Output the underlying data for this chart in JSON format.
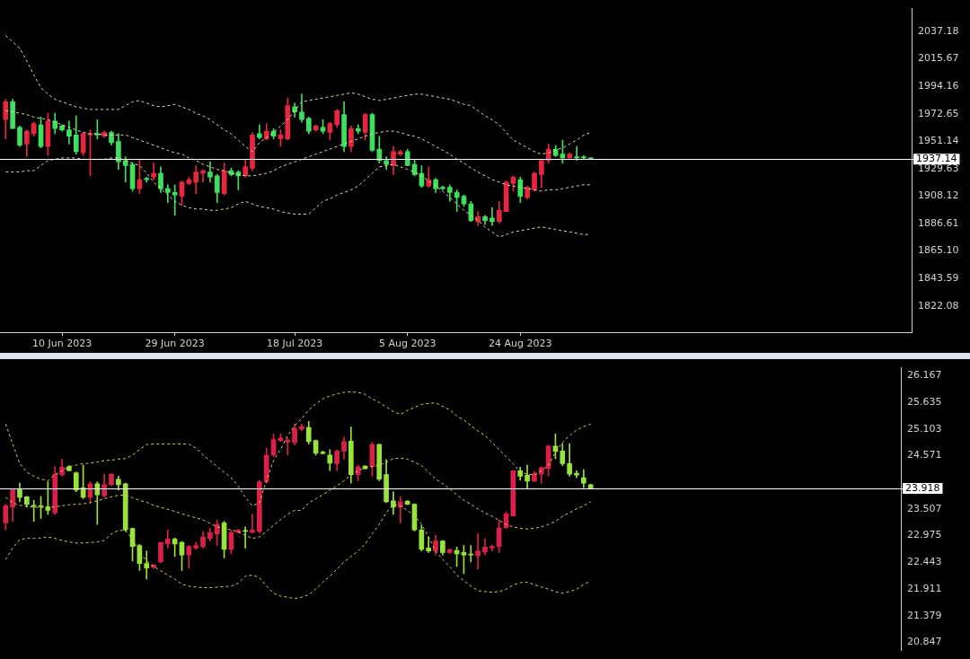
{
  "chart_data": [
    {
      "type": "candlestick",
      "categories": [
        null,
        null,
        null,
        null,
        null,
        null,
        null,
        null,
        "10 Jun 2023",
        null,
        null,
        null,
        null,
        null,
        null,
        null,
        null,
        null,
        null,
        null,
        null,
        null,
        null,
        null,
        "29 Jun 2023",
        null,
        null,
        null,
        null,
        null,
        null,
        null,
        null,
        null,
        null,
        null,
        null,
        null,
        null,
        null,
        null,
        "18 Jul 2023",
        null,
        null,
        null,
        null,
        null,
        null,
        null,
        null,
        null,
        null,
        null,
        null,
        null,
        null,
        null,
        "5 Aug 2023",
        null,
        null,
        null,
        null,
        null,
        null,
        null,
        null,
        null,
        null,
        null,
        null,
        null,
        null,
        null,
        "24 Aug 2023",
        null,
        null,
        null,
        null,
        null,
        null,
        null,
        null,
        null,
        null
      ],
      "ohlc": [
        [
          1968,
          1984,
          1953,
          1982
        ],
        [
          1982,
          1984,
          1961,
          1961
        ],
        [
          1962,
          1963,
          1947,
          1948
        ],
        [
          1949,
          1960,
          1939,
          1959
        ],
        [
          1957,
          1966,
          1955,
          1965
        ],
        [
          1964,
          1970,
          1946,
          1947
        ],
        [
          1947,
          1973,
          1940,
          1967
        ],
        [
          1967,
          1973,
          1957,
          1961
        ],
        [
          1963,
          1964,
          1959,
          1960
        ],
        [
          1960,
          1967,
          1949,
          1955
        ],
        [
          1956,
          1971,
          1941,
          1943
        ],
        [
          1942,
          1958,
          1940,
          1957
        ],
        [
          1956,
          1960,
          1924,
          1957
        ],
        [
          1957,
          1968,
          1953,
          1956
        ],
        [
          1955,
          1959,
          1954,
          1958
        ],
        [
          1958,
          1959,
          1948,
          1950
        ],
        [
          1951,
          1957,
          1929,
          1935
        ],
        [
          1936,
          1939,
          1919,
          1932
        ],
        [
          1933,
          1934,
          1912,
          1914
        ],
        [
          1914,
          1937,
          1910,
          1921
        ],
        [
          1922,
          1923,
          1919,
          1921
        ],
        [
          1923,
          1934,
          1921,
          1926
        ],
        [
          1926,
          1931,
          1911,
          1914
        ],
        [
          1914,
          1917,
          1903,
          1911
        ],
        [
          1911,
          1917,
          1893,
          1909
        ],
        [
          1908,
          1920,
          1901,
          1919
        ],
        [
          1918,
          1923,
          1917,
          1921
        ],
        [
          1919,
          1932,
          1910,
          1927
        ],
        [
          1926,
          1929,
          1919,
          1928
        ],
        [
          1927,
          1935,
          1919,
          1923
        ],
        [
          1924,
          1925,
          1903,
          1911
        ],
        [
          1910,
          1934,
          1909,
          1928
        ],
        [
          1928,
          1930,
          1924,
          1925
        ],
        [
          1927,
          1928,
          1913,
          1924
        ],
        [
          1924,
          1937,
          1923,
          1931
        ],
        [
          1930,
          1958,
          1928,
          1956
        ],
        [
          1957,
          1964,
          1953,
          1954
        ],
        [
          1953,
          1965,
          1952,
          1959
        ],
        [
          1959,
          1961,
          1953,
          1955
        ],
        [
          1953,
          1960,
          1947,
          1956
        ],
        [
          1953,
          1985,
          1952,
          1979
        ],
        [
          1978,
          1981,
          1970,
          1974
        ],
        [
          1974,
          1988,
          1966,
          1968
        ],
        [
          1969,
          1970,
          1957,
          1959
        ],
        [
          1960,
          1964,
          1959,
          1963
        ],
        [
          1962,
          1968,
          1957,
          1959
        ],
        [
          1958,
          1966,
          1952,
          1965
        ],
        [
          1964,
          1976,
          1962,
          1975
        ],
        [
          1972,
          1982,
          1943,
          1947
        ],
        [
          1947,
          1963,
          1943,
          1961
        ],
        [
          1961,
          1964,
          1957,
          1959
        ],
        [
          1958,
          1973,
          1952,
          1972
        ],
        [
          1972,
          1973,
          1943,
          1944
        ],
        [
          1945,
          1955,
          1934,
          1936
        ],
        [
          1936,
          1939,
          1929,
          1933
        ],
        [
          1932,
          1947,
          1925,
          1943
        ],
        [
          1941,
          1944,
          1940,
          1943
        ],
        [
          1943,
          1945,
          1932,
          1932
        ],
        [
          1933,
          1937,
          1924,
          1925
        ],
        [
          1926,
          1932,
          1915,
          1916
        ],
        [
          1916,
          1931,
          1915,
          1921
        ],
        [
          1921,
          1922,
          1911,
          1914
        ],
        [
          1915,
          1916,
          1913,
          1914
        ],
        [
          1915,
          1917,
          1904,
          1911
        ],
        [
          1911,
          1913,
          1896,
          1907
        ],
        [
          1908,
          1909,
          1900,
          1902
        ],
        [
          1902,
          1904,
          1888,
          1889
        ],
        [
          1888,
          1896,
          1885,
          1892
        ],
        [
          1892,
          1893,
          1886,
          1889
        ],
        [
          1891,
          1899,
          1885,
          1888
        ],
        [
          1888,
          1904,
          1887,
          1897
        ],
        [
          1896,
          1920,
          1896,
          1919
        ],
        [
          1918,
          1924,
          1912,
          1923
        ],
        [
          1921,
          1923,
          1903,
          1908
        ],
        [
          1907,
          1916,
          1906,
          1915
        ],
        [
          1913,
          1927,
          1912,
          1926
        ],
        [
          1925,
          1937,
          1915,
          1936
        ],
        [
          1936,
          1949,
          1934,
          1945
        ],
        [
          1945,
          1948,
          1939,
          1940
        ],
        [
          1941,
          1952,
          1934,
          1938
        ],
        [
          1938,
          1942,
          1937,
          1941
        ],
        [
          1939,
          1947,
          1936,
          1938
        ],
        [
          1939,
          1940,
          1937,
          1938
        ],
        [
          1938,
          1938,
          1937,
          1937
        ]
      ],
      "colors": [
        "#e8263f",
        "#3ee05c",
        "#3ee05c",
        "#e8263f",
        "#e8263f",
        "#3ee05c",
        "#e8263f",
        "#3ee05c",
        "#3ee05c",
        "#3ee05c",
        "#3ee05c",
        "#e8263f",
        "#e8263f",
        "#3ee05c",
        "#e8263f",
        "#3ee05c",
        "#3ee05c",
        "#3ee05c",
        "#3ee05c",
        "#e8263f",
        "#3ee05c",
        "#e8263f",
        "#3ee05c",
        "#3ee05c",
        "#3ee05c",
        "#e8263f",
        "#e8263f",
        "#e8263f",
        "#e8263f",
        "#3ee05c",
        "#3ee05c",
        "#e8263f",
        "#3ee05c",
        "#3ee05c",
        "#e8263f",
        "#e8263f",
        "#3ee05c",
        "#e8263f",
        "#3ee05c",
        "#e8263f",
        "#e8263f",
        "#3ee05c",
        "#3ee05c",
        "#3ee05c",
        "#e8263f",
        "#3ee05c",
        "#e8263f",
        "#e8263f",
        "#3ee05c",
        "#e8263f",
        "#3ee05c",
        "#e8263f",
        "#3ee05c",
        "#3ee05c",
        "#3ee05c",
        "#e8263f",
        "#e8263f",
        "#3ee05c",
        "#3ee05c",
        "#3ee05c",
        "#e8263f",
        "#3ee05c",
        "#3ee05c",
        "#3ee05c",
        "#3ee05c",
        "#3ee05c",
        "#3ee05c",
        "#e8263f",
        "#3ee05c",
        "#3ee05c",
        "#e8263f",
        "#e8263f",
        "#e8263f",
        "#3ee05c",
        "#e8263f",
        "#e8263f",
        "#e8263f",
        "#e8263f",
        "#3ee05c",
        "#3ee05c",
        "#e8263f",
        "#3ee05c",
        "#3ee05c",
        "#3ee05c"
      ],
      "series": [
        {
          "type": "line",
          "color": "#e0dca0",
          "line_style": "dashed",
          "values": [
            2034,
            2029,
            2024,
            2014,
            2003,
            1993,
            1988,
            1984,
            1982,
            1980,
            1978,
            1977,
            1976,
            1976,
            1976,
            1976,
            1976,
            1979,
            1982,
            1983,
            1981,
            1979,
            1978,
            1979,
            1980,
            1978,
            1976,
            1973,
            1971,
            1968,
            1964,
            1960,
            1957,
            1952,
            1947,
            1943,
            1950,
            1954,
            1958,
            1963,
            1968,
            1975,
            1982,
            1983,
            1984,
            1985,
            1986,
            1987,
            1988,
            1989,
            1988,
            1986,
            1984,
            1983,
            1984,
            1985,
            1986,
            1987,
            1988,
            1988,
            1987,
            1986,
            1985,
            1984,
            1982,
            1980,
            1979,
            1975,
            1971,
            1968,
            1964,
            1958,
            1952,
            1949,
            1946,
            1943,
            1941,
            1942,
            1944,
            1946,
            1949,
            1952,
            1956,
            1958
          ]
        },
        {
          "type": "line",
          "color": "#e0dca0",
          "line_style": "dashed",
          "values": [
            1975,
            1974,
            1973,
            1972,
            1970,
            1969,
            1968,
            1966,
            1964,
            1962,
            1960,
            1958,
            1957,
            1957,
            1956,
            1956,
            1956,
            1956,
            1954,
            1952,
            1950,
            1948,
            1946,
            1944,
            1942,
            1941,
            1938,
            1936,
            1933,
            1931,
            1929,
            1928,
            1926,
            1925,
            1924,
            1924,
            1925,
            1926,
            1928,
            1931,
            1933,
            1935,
            1937,
            1939,
            1941,
            1943,
            1945,
            1947,
            1949,
            1951,
            1953,
            1955,
            1957,
            1958,
            1959,
            1959,
            1958,
            1956,
            1955,
            1953,
            1950,
            1947,
            1944,
            1941,
            1937,
            1934,
            1930,
            1927,
            1924,
            1921,
            1919,
            1917,
            1916,
            1915,
            1914,
            1913,
            1912,
            1913,
            1913,
            1914,
            1915,
            1916,
            1917,
            1917
          ]
        },
        {
          "type": "line",
          "color": "#e0dca0",
          "line_style": "dashed",
          "values": [
            1927,
            1927,
            1927,
            1928,
            1928,
            1932,
            1936,
            1937,
            1938,
            1938,
            1938,
            1937,
            1937,
            1937,
            1937,
            1938,
            1938,
            1936,
            1934,
            1932,
            1926,
            1919,
            1914,
            1909,
            1904,
            1901,
            1899,
            1898,
            1898,
            1897,
            1897,
            1898,
            1899,
            1902,
            1904,
            1902,
            1900,
            1899,
            1898,
            1896,
            1895,
            1894,
            1894,
            1894,
            1899,
            1904,
            1906,
            1909,
            1911,
            1913,
            1916,
            1921,
            1926,
            1931,
            1932,
            1933,
            1931,
            1929,
            1927,
            1924,
            1920,
            1916,
            1912,
            1907,
            1902,
            1897,
            1893,
            1889,
            1884,
            1880,
            1876,
            1878,
            1880,
            1881,
            1882,
            1883,
            1884,
            1883,
            1882,
            1881,
            1880,
            1879,
            1878,
            1878
          ]
        }
      ],
      "ylim": [
        1801.5,
        2055.0
      ],
      "yticks": [
        1822.08,
        1843.59,
        {
          "value": 1865.1,
          "label": "1865.10"
        },
        1886.61,
        1908.12,
        1929.63,
        1951.14,
        1972.65,
        1994.16,
        2015.67,
        2037.18
      ],
      "ref_lines": [
        {
          "axis": "y",
          "value": 1937.14,
          "label": "1937.14",
          "color": "#ffffff"
        }
      ]
    },
    {
      "type": "candlestick",
      "categories": [
        null,
        null,
        null,
        null,
        null,
        null,
        null,
        null,
        null,
        null,
        null,
        null,
        null,
        null,
        null,
        null,
        null,
        null,
        null,
        null,
        null,
        null,
        null,
        null,
        null,
        null,
        null,
        null,
        null,
        null,
        null,
        null,
        null,
        null,
        null,
        null,
        null,
        null,
        null,
        null,
        null,
        null,
        null,
        null,
        null,
        null,
        null,
        null,
        null,
        null,
        null,
        null,
        null,
        null,
        null,
        null,
        null,
        null,
        null,
        null,
        null,
        null,
        null,
        null,
        null,
        null,
        null,
        null,
        null,
        null,
        null,
        null,
        null,
        null,
        null,
        null,
        null,
        null,
        null,
        null,
        null,
        null,
        null,
        null
      ],
      "tick_labels": "y",
      "ohlc": [
        [
          23.23,
          23.6,
          23.09,
          23.57
        ],
        [
          23.54,
          23.92,
          23.26,
          23.9
        ],
        [
          23.9,
          24.02,
          23.65,
          23.74
        ],
        [
          23.75,
          23.76,
          23.54,
          23.6
        ],
        [
          23.58,
          23.68,
          23.26,
          23.56
        ],
        [
          23.57,
          23.76,
          23.32,
          23.55
        ],
        [
          23.55,
          24.05,
          23.4,
          23.48
        ],
        [
          23.43,
          24.35,
          23.4,
          24.2
        ],
        [
          24.19,
          24.5,
          24.16,
          24.34
        ],
        [
          24.35,
          24.37,
          24.26,
          24.27
        ],
        [
          24.23,
          24.24,
          23.85,
          23.88
        ],
        [
          23.93,
          24.38,
          23.71,
          23.74
        ],
        [
          23.74,
          24.05,
          23.63,
          24.01
        ],
        [
          24.01,
          24.05,
          23.2,
          23.79
        ],
        [
          23.77,
          24.2,
          23.74,
          23.99
        ],
        [
          23.99,
          24.21,
          23.97,
          24.2
        ],
        [
          24.1,
          24.16,
          23.88,
          23.99
        ],
        [
          24.01,
          24.02,
          23.06,
          23.09
        ],
        [
          23.12,
          23.13,
          22.47,
          22.76
        ],
        [
          22.78,
          22.8,
          22.28,
          22.42
        ],
        [
          22.42,
          22.67,
          22.11,
          22.33
        ],
        [
          22.35,
          22.4,
          22.32,
          22.39
        ],
        [
          22.45,
          22.84,
          22.44,
          22.84
        ],
        [
          22.81,
          23.09,
          22.73,
          22.91
        ],
        [
          22.91,
          22.93,
          22.56,
          22.81
        ],
        [
          22.84,
          22.86,
          22.28,
          22.59
        ],
        [
          22.59,
          22.78,
          22.33,
          22.76
        ],
        [
          22.73,
          22.84,
          22.7,
          22.78
        ],
        [
          22.76,
          23.06,
          22.73,
          22.95
        ],
        [
          22.92,
          23.12,
          22.87,
          23.04
        ],
        [
          23.01,
          23.29,
          22.78,
          23.2
        ],
        [
          23.23,
          23.26,
          22.53,
          22.7
        ],
        [
          22.7,
          23.09,
          22.61,
          23.04
        ],
        [
          23.04,
          23.1,
          23.02,
          23.09
        ],
        [
          23.07,
          23.15,
          22.73,
          23.06
        ],
        [
          23.04,
          23.4,
          23.03,
          23.09
        ],
        [
          23.06,
          24.07,
          23.03,
          24.05
        ],
        [
          24.05,
          24.72,
          24.02,
          24.58
        ],
        [
          24.58,
          25.0,
          24.55,
          24.89
        ],
        [
          24.87,
          25.0,
          24.85,
          24.92
        ],
        [
          24.84,
          24.92,
          24.58,
          24.88
        ],
        [
          24.83,
          25.2,
          24.78,
          25.11
        ],
        [
          25.1,
          25.2,
          25.06,
          25.15
        ],
        [
          25.13,
          25.25,
          24.8,
          24.85
        ],
        [
          24.87,
          24.88,
          24.58,
          24.62
        ],
        [
          24.64,
          24.66,
          24.6,
          24.61
        ],
        [
          24.58,
          24.69,
          24.27,
          24.42
        ],
        [
          24.41,
          24.68,
          24.27,
          24.66
        ],
        [
          24.66,
          24.94,
          24.5,
          24.85
        ],
        [
          24.86,
          25.14,
          24.02,
          24.19
        ],
        [
          24.19,
          24.38,
          24.07,
          24.35
        ],
        [
          24.36,
          24.37,
          24.3,
          24.31
        ],
        [
          24.35,
          24.83,
          24.16,
          24.79
        ],
        [
          24.79,
          24.8,
          24.07,
          24.1
        ],
        [
          24.19,
          24.49,
          23.63,
          23.65
        ],
        [
          23.67,
          23.85,
          23.4,
          23.54
        ],
        [
          23.54,
          23.76,
          23.23,
          23.65
        ],
        [
          23.66,
          23.68,
          23.59,
          23.6
        ],
        [
          23.6,
          23.61,
          23.07,
          23.09
        ],
        [
          23.09,
          23.18,
          22.67,
          22.7
        ],
        [
          22.73,
          22.95,
          22.64,
          22.67
        ],
        [
          22.67,
          22.98,
          22.59,
          22.87
        ],
        [
          22.87,
          22.88,
          22.59,
          22.64
        ],
        [
          22.64,
          22.71,
          22.62,
          22.7
        ],
        [
          22.68,
          22.75,
          22.36,
          22.61
        ],
        [
          22.64,
          22.78,
          22.22,
          22.59
        ],
        [
          22.61,
          22.78,
          22.45,
          22.59
        ],
        [
          22.57,
          23.01,
          22.31,
          22.67
        ],
        [
          22.65,
          22.92,
          22.59,
          22.75
        ],
        [
          22.73,
          22.79,
          22.67,
          22.76
        ],
        [
          22.76,
          23.29,
          22.64,
          23.13
        ],
        [
          23.13,
          23.45,
          23.12,
          23.41
        ],
        [
          23.37,
          24.27,
          23.37,
          24.27
        ],
        [
          24.27,
          24.34,
          24.08,
          24.16
        ],
        [
          24.18,
          24.38,
          23.91,
          24.06
        ],
        [
          24.06,
          24.25,
          24.05,
          24.21
        ],
        [
          24.2,
          24.35,
          24.02,
          24.33
        ],
        [
          24.31,
          24.78,
          24.16,
          24.76
        ],
        [
          24.76,
          25.0,
          24.51,
          24.65
        ],
        [
          24.66,
          24.81,
          24.37,
          24.41
        ],
        [
          24.41,
          24.81,
          24.16,
          24.2
        ],
        [
          24.22,
          24.27,
          24.13,
          24.18
        ],
        [
          24.13,
          24.29,
          23.93,
          24.02
        ],
        [
          23.99,
          24.0,
          23.92,
          23.92
        ]
      ],
      "colors": [
        "#dc2048",
        "#dc2048",
        "#98e33a",
        "#98e33a",
        "#98e33a",
        "#98e33a",
        "#98e33a",
        "#dc2048",
        "#dc2048",
        "#98e33a",
        "#98e33a",
        "#98e33a",
        "#dc2048",
        "#98e33a",
        "#dc2048",
        "#dc2048",
        "#98e33a",
        "#98e33a",
        "#98e33a",
        "#98e33a",
        "#98e33a",
        "#dc2048",
        "#dc2048",
        "#dc2048",
        "#98e33a",
        "#98e33a",
        "#dc2048",
        "#dc2048",
        "#dc2048",
        "#dc2048",
        "#dc2048",
        "#98e33a",
        "#dc2048",
        "#dc2048",
        "#98e33a",
        "#dc2048",
        "#dc2048",
        "#dc2048",
        "#dc2048",
        "#dc2048",
        "#dc2048",
        "#dc2048",
        "#dc2048",
        "#98e33a",
        "#98e33a",
        "#98e33a",
        "#98e33a",
        "#dc2048",
        "#dc2048",
        "#98e33a",
        "#dc2048",
        "#98e33a",
        "#dc2048",
        "#98e33a",
        "#98e33a",
        "#98e33a",
        "#dc2048",
        "#98e33a",
        "#98e33a",
        "#98e33a",
        "#98e33a",
        "#dc2048",
        "#98e33a",
        "#dc2048",
        "#98e33a",
        "#98e33a",
        "#98e33a",
        "#dc2048",
        "#dc2048",
        "#dc2048",
        "#dc2048",
        "#dc2048",
        "#dc2048",
        "#98e33a",
        "#98e33a",
        "#dc2048",
        "#dc2048",
        "#dc2048",
        "#98e33a",
        "#98e33a",
        "#98e33a",
        "#98e33a",
        "#98e33a",
        "#98e33a"
      ],
      "series": [
        {
          "type": "line",
          "color": "#d8d050",
          "line_style": "dashed",
          "values": [
            25.2,
            24.8,
            24.41,
            24.24,
            24.16,
            24.1,
            24.07,
            24.19,
            24.27,
            24.35,
            24.38,
            24.41,
            24.42,
            24.44,
            24.47,
            24.48,
            24.5,
            24.51,
            24.58,
            24.69,
            24.79,
            24.8,
            24.8,
            24.8,
            24.8,
            24.8,
            24.8,
            24.72,
            24.58,
            24.47,
            24.35,
            24.24,
            24.13,
            23.96,
            23.74,
            23.57,
            23.63,
            24.07,
            24.47,
            24.69,
            24.97,
            25.17,
            25.31,
            25.48,
            25.6,
            25.7,
            25.76,
            25.8,
            25.83,
            25.84,
            25.83,
            25.79,
            25.7,
            25.63,
            25.54,
            25.45,
            25.39,
            25.47,
            25.53,
            25.59,
            25.61,
            25.62,
            25.55,
            25.48,
            25.36,
            25.28,
            25.17,
            25.06,
            24.97,
            24.83,
            24.69,
            24.55,
            24.41,
            24.24,
            24.2,
            24.19,
            24.27,
            24.38,
            24.64,
            24.83,
            24.97,
            25.08,
            25.15,
            25.2
          ]
        },
        {
          "type": "line",
          "color": "#d8d050",
          "line_style": "dashed",
          "values": [
            23.74,
            23.63,
            23.58,
            23.56,
            23.54,
            23.54,
            23.54,
            23.55,
            23.57,
            23.59,
            23.6,
            23.61,
            23.63,
            23.67,
            23.71,
            23.75,
            23.78,
            23.78,
            23.73,
            23.68,
            23.64,
            23.58,
            23.54,
            23.5,
            23.46,
            23.41,
            23.37,
            23.33,
            23.29,
            23.22,
            23.15,
            23.12,
            23.09,
            23.05,
            22.98,
            22.92,
            22.95,
            23.06,
            23.18,
            23.29,
            23.4,
            23.48,
            23.48,
            23.63,
            23.71,
            23.79,
            23.88,
            23.97,
            24.07,
            24.19,
            24.27,
            24.33,
            24.35,
            24.38,
            24.44,
            24.51,
            24.52,
            24.5,
            24.44,
            24.37,
            24.24,
            24.1,
            24.01,
            23.91,
            23.79,
            23.68,
            23.6,
            23.51,
            23.43,
            23.36,
            23.28,
            23.2,
            23.15,
            23.12,
            23.11,
            23.12,
            23.15,
            23.2,
            23.26,
            23.36,
            23.43,
            23.51,
            23.57,
            23.65
          ]
        },
        {
          "type": "line",
          "color": "#d8d050",
          "line_style": "dashed",
          "values": [
            22.5,
            22.73,
            22.9,
            22.92,
            22.92,
            22.93,
            22.95,
            22.92,
            22.88,
            22.85,
            22.83,
            22.83,
            22.84,
            22.85,
            22.88,
            23.01,
            23.08,
            23.08,
            22.9,
            22.64,
            22.47,
            22.36,
            22.28,
            22.19,
            22.11,
            22.01,
            21.97,
            21.95,
            21.94,
            21.94,
            21.95,
            21.96,
            21.97,
            22.03,
            22.17,
            22.19,
            22.14,
            21.97,
            21.83,
            21.77,
            21.75,
            21.72,
            21.75,
            21.8,
            21.91,
            22.05,
            22.17,
            22.31,
            22.45,
            22.56,
            22.67,
            22.81,
            23.01,
            23.2,
            23.43,
            23.6,
            23.57,
            23.48,
            23.37,
            23.2,
            22.95,
            22.67,
            22.5,
            22.36,
            22.19,
            22.08,
            21.97,
            21.88,
            21.86,
            21.85,
            21.86,
            21.91,
            21.99,
            22.04,
            22.05,
            22.0,
            21.95,
            21.91,
            21.86,
            21.83,
            21.86,
            21.91,
            22.0,
            22.08
          ]
        }
      ],
      "ylim": [
        20.69,
        26.32
      ],
      "yticks": [
        20.847,
        21.379,
        21.911,
        22.443,
        22.975,
        23.507,
        24.571,
        25.103,
        25.635,
        26.167
      ],
      "ref_lines": [
        {
          "axis": "y",
          "value": 23.918,
          "label": "23.918",
          "color": "#ffffff"
        }
      ]
    }
  ]
}
